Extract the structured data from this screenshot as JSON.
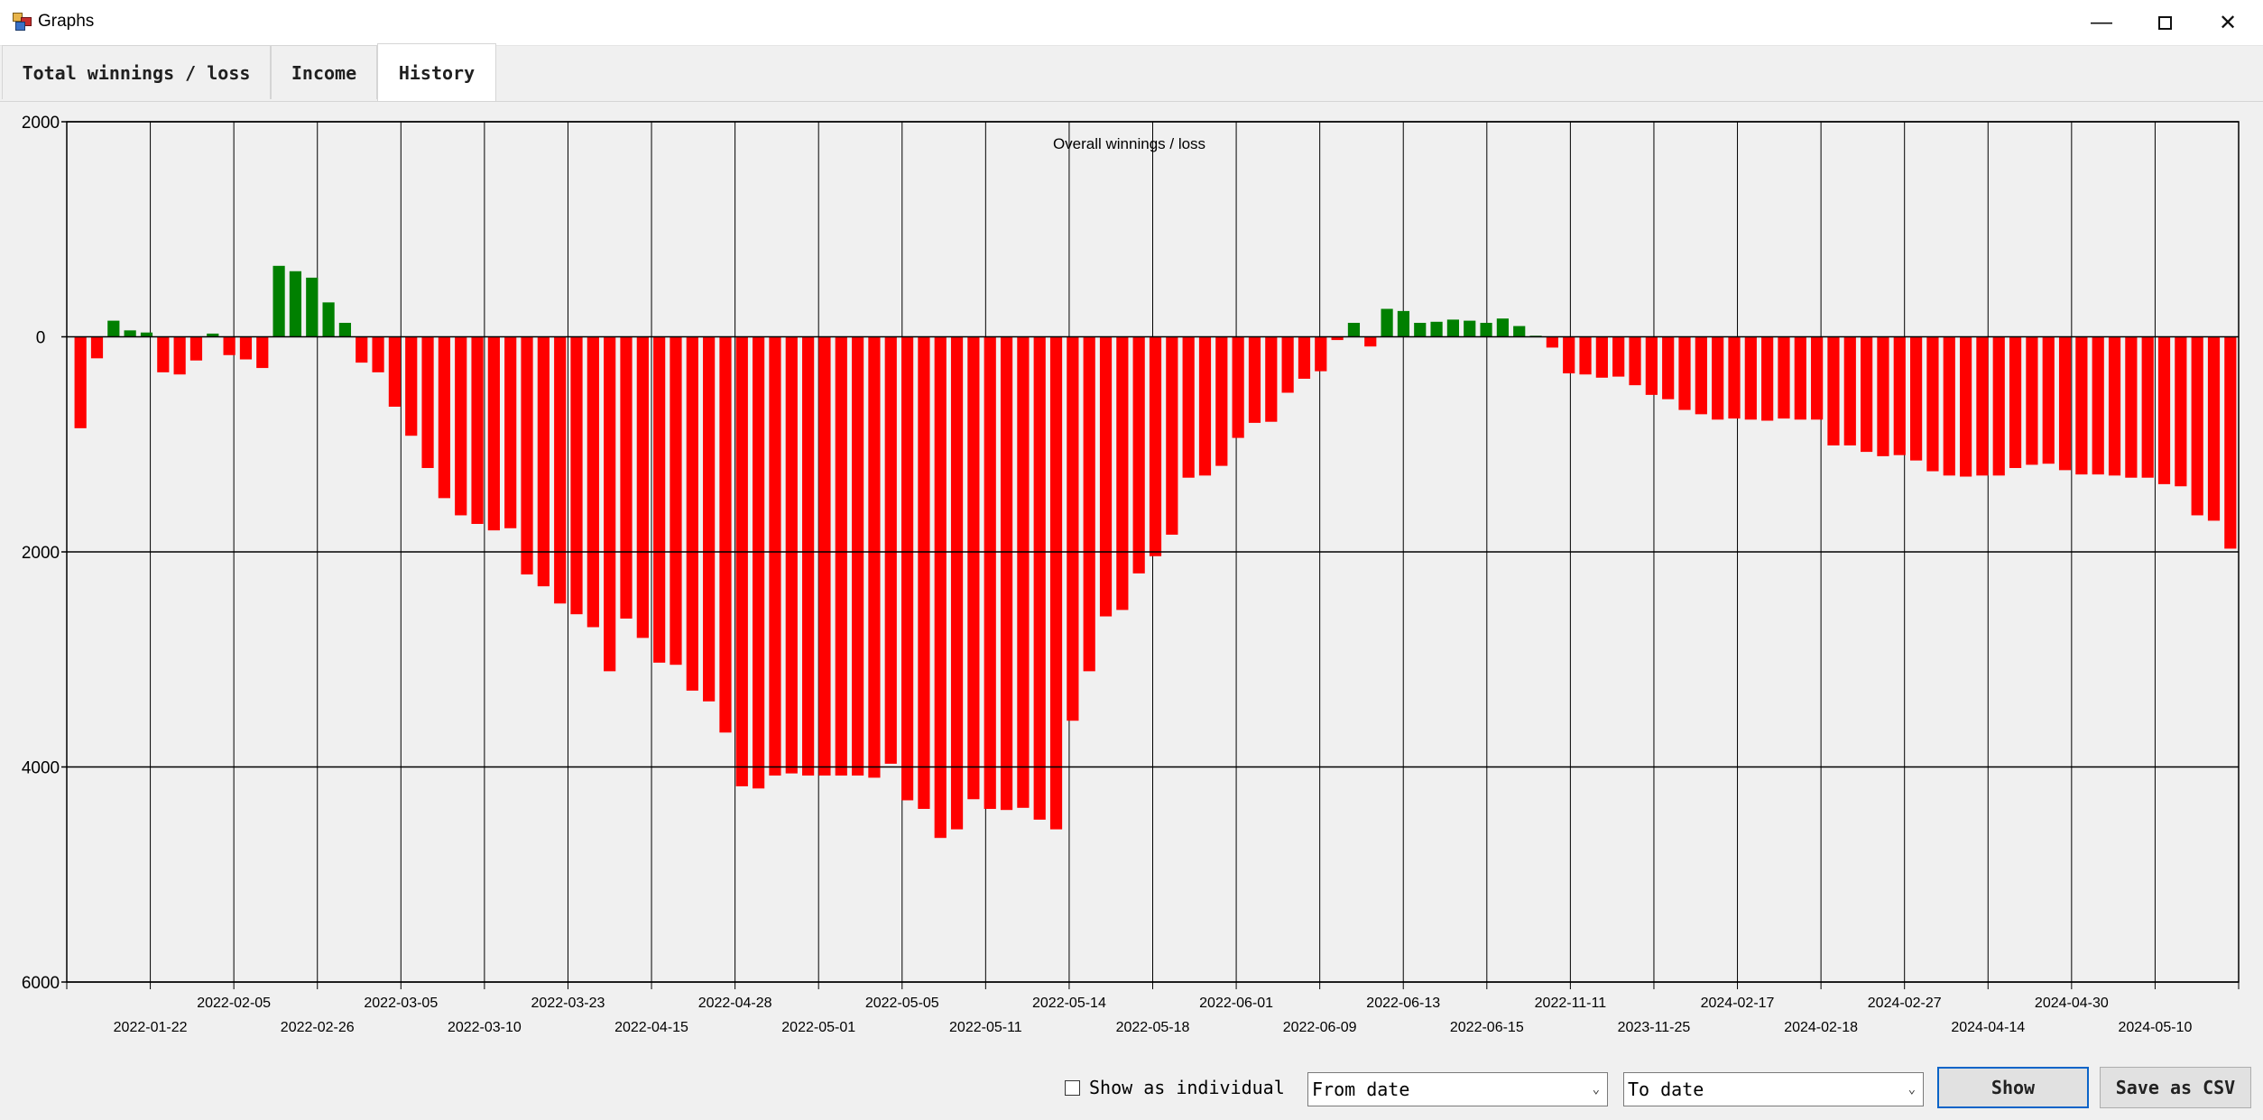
{
  "window": {
    "title": "Graphs"
  },
  "tabs": [
    {
      "label": "Total winnings / loss"
    },
    {
      "label": "Income"
    },
    {
      "label": "History"
    }
  ],
  "controls": {
    "show_individual_label": "Show as individual",
    "show_individual_checked": false,
    "from_date_value": "From date",
    "to_date_value": "To date",
    "show_button": "Show",
    "save_csv_button": "Save as CSV"
  },
  "colors": {
    "positive": "#008000",
    "negative": "#ff0000",
    "grid": "#000000"
  },
  "chart_data": {
    "type": "bar",
    "title": "Overall winnings / loss",
    "ylim": [
      -6000,
      2000
    ],
    "yticks": [
      2000,
      0,
      -2000,
      -4000,
      -6000
    ],
    "ytick_labels": [
      "2000",
      "0",
      "2000",
      "4000",
      "6000"
    ],
    "grid": true,
    "x_tick_labels_upper": [
      "2022-02-05",
      "2022-03-05",
      "2022-03-23",
      "2022-04-28",
      "2022-05-05",
      "2022-05-14",
      "2022-06-01",
      "2022-06-13",
      "2022-11-11",
      "2024-02-17",
      "2024-02-27",
      "2024-04-30"
    ],
    "x_tick_labels_lower": [
      "2022-01-22",
      "2022-02-26",
      "2022-03-10",
      "2022-04-15",
      "2022-05-01",
      "2022-05-11",
      "2022-05-18",
      "2022-06-09",
      "2022-06-15",
      "2023-11-25",
      "2024-02-18",
      "2024-04-14",
      "2024-05-10"
    ],
    "values": [
      -850,
      -200,
      150,
      60,
      40,
      -330,
      -350,
      -220,
      30,
      -170,
      -210,
      -290,
      660,
      610,
      550,
      320,
      130,
      -240,
      -330,
      -650,
      -920,
      -1220,
      -1500,
      -1660,
      -1740,
      -1800,
      -1780,
      -2210,
      -2320,
      -2480,
      -2580,
      -2700,
      -3110,
      -2620,
      -2800,
      -3030,
      -3050,
      -3290,
      -3390,
      -3680,
      -4180,
      -4200,
      -4080,
      -4060,
      -4080,
      -4080,
      -4080,
      -4080,
      -4100,
      -3970,
      -4310,
      -4390,
      -4660,
      -4580,
      -4300,
      -4390,
      -4400,
      -4380,
      -4490,
      -4580,
      -3570,
      -3110,
      -2600,
      -2540,
      -2200,
      -2040,
      -1840,
      -1310,
      -1290,
      -1200,
      -940,
      -800,
      -790,
      -520,
      -390,
      -320,
      -30,
      130,
      -90,
      260,
      240,
      130,
      140,
      160,
      150,
      130,
      170,
      100,
      10,
      -100,
      -340,
      -350,
      -380,
      -370,
      -450,
      -540,
      -580,
      -680,
      -720,
      -770,
      -760,
      -770,
      -780,
      -760,
      -770,
      -770,
      -1010,
      -1010,
      -1070,
      -1110,
      -1100,
      -1150,
      -1250,
      -1290,
      -1300,
      -1290,
      -1290,
      -1220,
      -1190,
      -1180,
      -1240,
      -1280,
      -1280,
      -1290,
      -1310,
      -1310,
      -1370,
      -1390,
      -1660,
      -1710,
      -1970
    ]
  }
}
